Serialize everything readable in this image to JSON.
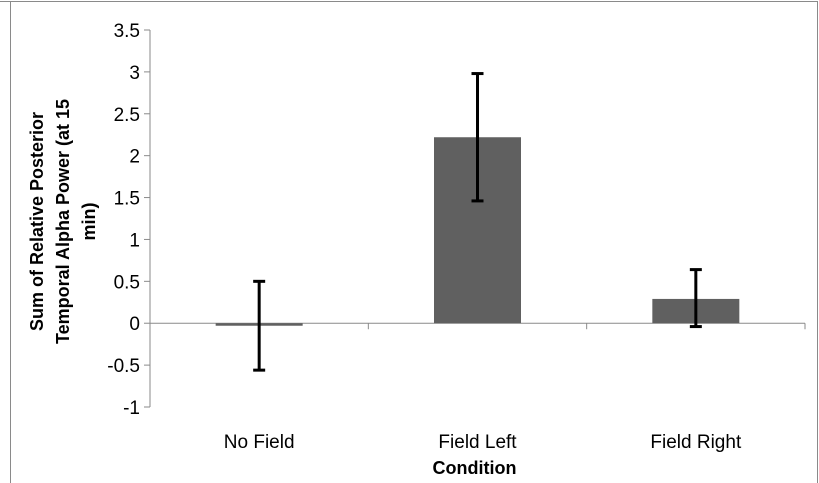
{
  "chart_data": {
    "type": "bar",
    "title": "",
    "xlabel": "Condition",
    "ylabel_lines": [
      "Sum of Relative Posterior",
      "Temporal Alpha Power (at 15",
      "min)"
    ],
    "categories": [
      "No Field",
      "Field Left",
      "Field Right"
    ],
    "values": [
      -0.03,
      2.22,
      0.29
    ],
    "error_bars": [
      {
        "low": -0.56,
        "high": 0.5
      },
      {
        "low": 1.46,
        "high": 2.98
      },
      {
        "low": -0.04,
        "high": 0.64
      }
    ],
    "ylim": [
      -1,
      3.5
    ],
    "yticks": [
      -1,
      -0.5,
      0,
      0.5,
      1,
      1.5,
      2,
      2.5,
      3,
      3.5
    ],
    "ytick_labels": [
      "-1",
      "-0.5",
      "0",
      "0.5",
      "1",
      "1.5",
      "2",
      "2.5",
      "3",
      "3.5"
    ],
    "grid": false,
    "legend": false,
    "colors": {
      "bar": "#606060",
      "error_bar": "#000000",
      "axis": "#8a8a8a"
    }
  }
}
